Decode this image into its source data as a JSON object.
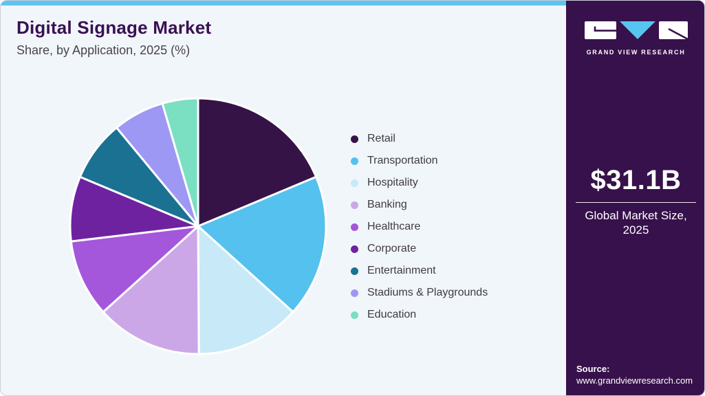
{
  "header": {
    "title": "Digital Signage Market",
    "subtitle": "Share, by Application, 2025 (%)"
  },
  "chart_data": {
    "type": "pie",
    "title": "Digital Signage Market Share, by Application, 2025 (%)",
    "unit": "%",
    "start_angle_deg_from_top_clockwise": 0,
    "legend_position": "right",
    "data_labels_shown": false,
    "slices": [
      {
        "label": "Retail",
        "value": 18.7,
        "color": "#351347"
      },
      {
        "label": "Transportation",
        "value": 18.0,
        "color": "#54C1EF"
      },
      {
        "label": "Hospitality",
        "value": 13.2,
        "color": "#C8E9F8"
      },
      {
        "label": "Banking",
        "value": 13.4,
        "color": "#CBA7E8"
      },
      {
        "label": "Healthcare",
        "value": 9.8,
        "color": "#A557DB"
      },
      {
        "label": "Corporate",
        "value": 8.2,
        "color": "#6F22A0"
      },
      {
        "label": "Entertainment",
        "value": 7.7,
        "color": "#1A7191"
      },
      {
        "label": "Stadiums & Playgrounds",
        "value": 6.5,
        "color": "#9D98F3"
      },
      {
        "label": "Education",
        "value": 4.5,
        "color": "#7BDFC2"
      }
    ]
  },
  "sidebar": {
    "brand_name": "GRAND VIEW RESEARCH",
    "market_size": {
      "value": "$31.1B",
      "caption_line1": "Global Market Size,",
      "caption_line2": "2025"
    },
    "source_label": "Source:",
    "source_url": "www.grandviewresearch.com"
  },
  "colors": {
    "accent_bar": "#5EC3EE",
    "accent_bar_over_sidebar": "#240B3A",
    "card_background": "#F1F6FA",
    "sidebar_background": "#37114B",
    "title_text": "#3A1053",
    "body_text": "#3E3A47",
    "logo_triangle": "#56C5F0"
  }
}
